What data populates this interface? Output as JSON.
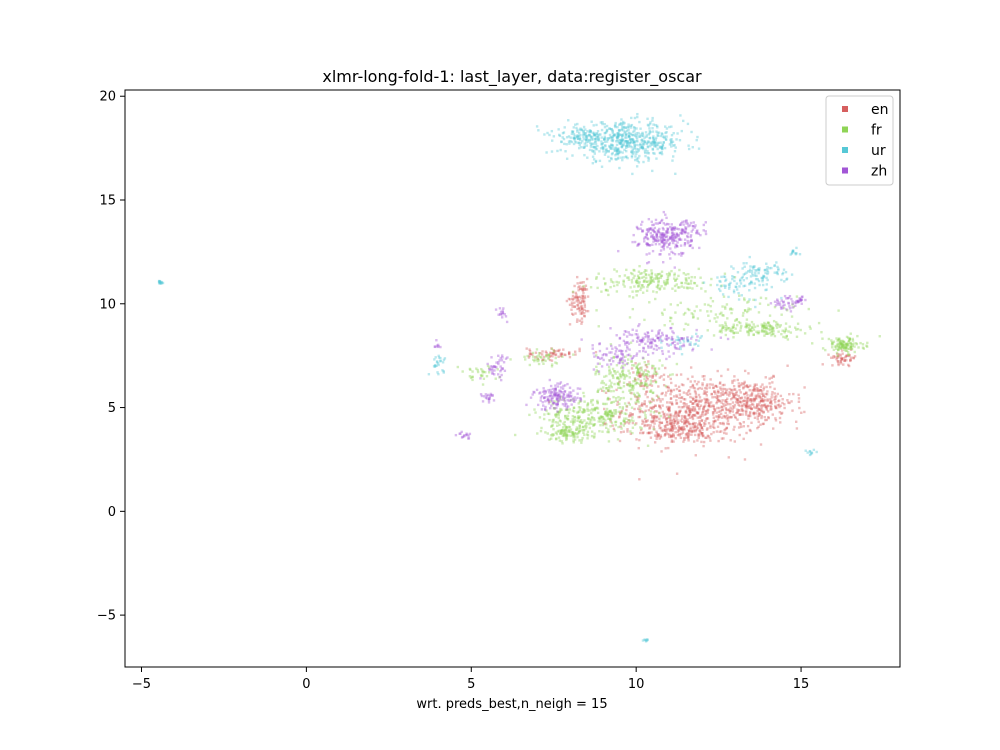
{
  "chart_data": {
    "type": "scatter",
    "title": "xlmr-long-fold-1: last_layer, data:register_oscar",
    "xlabel": "wrt. preds_best,n_neigh = 15",
    "ylabel": "",
    "xlim": [
      -5.5,
      18
    ],
    "ylim": [
      -7.5,
      20.3
    ],
    "x_ticks": [
      -5,
      0,
      5,
      10,
      15
    ],
    "y_ticks": [
      -5,
      0,
      5,
      10,
      15,
      20
    ],
    "x_tick_labels": [
      "−5",
      "0",
      "5",
      "10",
      "15"
    ],
    "y_tick_labels": [
      "−5",
      "0",
      "5",
      "10",
      "15",
      "20"
    ],
    "grid": false,
    "legend_position": "top-right",
    "series": [
      {
        "name": "en",
        "color": "#d65f5f",
        "clusters": [
          {
            "cx": 11.8,
            "cy": 4.9,
            "sx": 1.1,
            "sy": 0.8,
            "n": 700
          },
          {
            "cx": 13.6,
            "cy": 5.3,
            "sx": 0.6,
            "sy": 0.5,
            "n": 250
          },
          {
            "cx": 11.2,
            "cy": 3.9,
            "sx": 0.6,
            "sy": 0.3,
            "n": 150
          },
          {
            "cx": 8.3,
            "cy": 10.2,
            "sx": 0.15,
            "sy": 0.5,
            "n": 100
          },
          {
            "cx": 7.5,
            "cy": 7.6,
            "sx": 0.4,
            "sy": 0.15,
            "n": 60
          },
          {
            "cx": 16.3,
            "cy": 7.4,
            "sx": 0.2,
            "sy": 0.15,
            "n": 50
          },
          {
            "cx": 10.3,
            "cy": 6.5,
            "sx": 0.3,
            "sy": 0.3,
            "n": 40
          }
        ]
      },
      {
        "name": "fr",
        "color": "#8fd456",
        "clusters": [
          {
            "cx": 8.7,
            "cy": 4.6,
            "sx": 0.8,
            "sy": 0.5,
            "n": 300
          },
          {
            "cx": 7.9,
            "cy": 3.8,
            "sx": 0.3,
            "sy": 0.2,
            "n": 100
          },
          {
            "cx": 9.8,
            "cy": 6.4,
            "sx": 0.5,
            "sy": 0.6,
            "n": 200
          },
          {
            "cx": 10.5,
            "cy": 11.1,
            "sx": 0.9,
            "sy": 0.3,
            "n": 200
          },
          {
            "cx": 13.8,
            "cy": 8.8,
            "sx": 0.7,
            "sy": 0.2,
            "n": 150
          },
          {
            "cx": 16.3,
            "cy": 8.0,
            "sx": 0.3,
            "sy": 0.2,
            "n": 120
          },
          {
            "cx": 12.5,
            "cy": 9.6,
            "sx": 1.2,
            "sy": 0.4,
            "n": 100
          },
          {
            "cx": 7.2,
            "cy": 7.4,
            "sx": 0.4,
            "sy": 0.2,
            "n": 40
          },
          {
            "cx": 5.2,
            "cy": 6.6,
            "sx": 0.3,
            "sy": 0.2,
            "n": 30
          }
        ]
      },
      {
        "name": "ur",
        "color": "#56c8d6",
        "clusters": [
          {
            "cx": 9.7,
            "cy": 17.8,
            "sx": 0.9,
            "sy": 0.45,
            "n": 550
          },
          {
            "cx": 8.3,
            "cy": 18.1,
            "sx": 0.35,
            "sy": 0.2,
            "n": 80
          },
          {
            "cx": 13.8,
            "cy": 11.5,
            "sx": 0.4,
            "sy": 0.25,
            "n": 80
          },
          {
            "cx": 13.1,
            "cy": 10.9,
            "sx": 0.5,
            "sy": 0.3,
            "n": 60
          },
          {
            "cx": 11.5,
            "cy": 8.2,
            "sx": 0.3,
            "sy": 0.2,
            "n": 30
          },
          {
            "cx": 4.0,
            "cy": 7.1,
            "sx": 0.12,
            "sy": 0.2,
            "n": 25
          },
          {
            "cx": -4.45,
            "cy": 11.05,
            "sx": 0.05,
            "sy": 0.04,
            "n": 15
          },
          {
            "cx": 10.3,
            "cy": -6.2,
            "sx": 0.05,
            "sy": 0.04,
            "n": 8
          },
          {
            "cx": 14.7,
            "cy": 12.5,
            "sx": 0.15,
            "sy": 0.1,
            "n": 12
          },
          {
            "cx": 15.3,
            "cy": 2.8,
            "sx": 0.1,
            "sy": 0.1,
            "n": 10
          }
        ]
      },
      {
        "name": "zh",
        "color": "#a256d6",
        "clusters": [
          {
            "cx": 10.9,
            "cy": 13.2,
            "sx": 0.4,
            "sy": 0.45,
            "n": 250
          },
          {
            "cx": 11.6,
            "cy": 13.6,
            "sx": 0.25,
            "sy": 0.2,
            "n": 40
          },
          {
            "cx": 7.6,
            "cy": 5.5,
            "sx": 0.35,
            "sy": 0.3,
            "n": 150
          },
          {
            "cx": 10.5,
            "cy": 8.2,
            "sx": 0.7,
            "sy": 0.3,
            "n": 150
          },
          {
            "cx": 9.4,
            "cy": 7.4,
            "sx": 0.4,
            "sy": 0.3,
            "n": 60
          },
          {
            "cx": 14.6,
            "cy": 10.0,
            "sx": 0.25,
            "sy": 0.2,
            "n": 40
          },
          {
            "cx": 5.8,
            "cy": 7.0,
            "sx": 0.2,
            "sy": 0.3,
            "n": 40
          },
          {
            "cx": 5.5,
            "cy": 5.5,
            "sx": 0.1,
            "sy": 0.1,
            "n": 20
          },
          {
            "cx": 4.8,
            "cy": 3.7,
            "sx": 0.1,
            "sy": 0.1,
            "n": 15
          },
          {
            "cx": 5.9,
            "cy": 9.5,
            "sx": 0.08,
            "sy": 0.15,
            "n": 15
          },
          {
            "cx": 3.95,
            "cy": 8.0,
            "sx": 0.06,
            "sy": 0.08,
            "n": 8
          },
          {
            "cx": 15.0,
            "cy": 10.2,
            "sx": 0.1,
            "sy": 0.08,
            "n": 12
          }
        ]
      }
    ]
  }
}
